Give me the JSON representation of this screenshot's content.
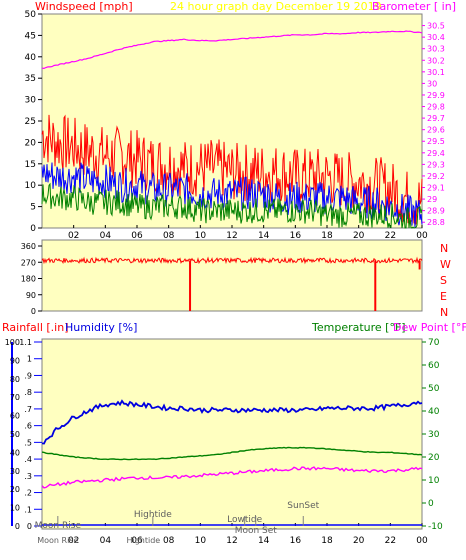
{
  "header": {
    "left_label": "Windspeed [mph]",
    "center_label": "24 hour graph day   December 19 2019",
    "right_label": "Barometer [ in]"
  },
  "colors": {
    "panel_bg": "#ffffc0",
    "frame": "#808080",
    "wind_speed": "#ff0000",
    "wind_avg": "#0000ff",
    "wind_low": "#008000",
    "barometer": "#ff00ff",
    "direction": "#ff0000",
    "humidity": "#0000e0",
    "temperature": "#008000",
    "dew_point": "#ff00ff",
    "rainfall": "#0000ff",
    "header_text": "#ffff00",
    "right_axis_text": "#ff00ff"
  },
  "chart_data": [
    {
      "type": "line",
      "title": "24 hour graph day   December 19 2019",
      "xlabel": "",
      "ylabel": "Windspeed [mph]",
      "y2label": "Barometer [ in]",
      "x_ticks": [
        "02",
        "04",
        "06",
        "08",
        "10",
        "12",
        "14",
        "16",
        "18",
        "20",
        "22",
        "00"
      ],
      "ylim": [
        0,
        50
      ],
      "y_ticks": [
        "0",
        "5",
        "10",
        "15",
        "20",
        "25",
        "30",
        "35",
        "40",
        "45",
        "50"
      ],
      "y2lim": [
        28.75,
        30.6
      ],
      "y2_ticks": [
        "28.8",
        "28.9",
        "29",
        "29.1",
        "29.2",
        "29.3",
        "29.4",
        "29.5",
        "29.6",
        "29.7",
        "29.8",
        "29.9",
        "30",
        "30.1",
        "30.2",
        "30.3",
        "30.4",
        "30.5"
      ],
      "grid": false,
      "series": [
        {
          "name": "Gust",
          "color": "#ff0000",
          "x": [
            0,
            1,
            2,
            3,
            4,
            5,
            6,
            7,
            8,
            9,
            10,
            11,
            12,
            13,
            14,
            15,
            16,
            17,
            18,
            19,
            20,
            21,
            22,
            23,
            24
          ],
          "values": [
            22,
            20,
            19,
            18,
            17,
            17,
            16,
            15,
            15,
            14,
            14,
            14,
            13,
            13,
            13,
            13,
            12,
            12,
            12,
            11,
            11,
            10,
            9,
            7,
            6
          ]
        },
        {
          "name": "Average",
          "color": "#0000ff",
          "x": [
            0,
            1,
            2,
            3,
            4,
            5,
            6,
            7,
            8,
            9,
            10,
            11,
            12,
            13,
            14,
            15,
            16,
            17,
            18,
            19,
            20,
            21,
            22,
            23,
            24
          ],
          "values": [
            13,
            12,
            12,
            11,
            11,
            10,
            10,
            9,
            9,
            9,
            8,
            8,
            8,
            8,
            8,
            7,
            7,
            7,
            7,
            7,
            6,
            6,
            5,
            4,
            3
          ]
        },
        {
          "name": "Low",
          "color": "#008000",
          "x": [
            0,
            1,
            2,
            3,
            4,
            5,
            6,
            7,
            8,
            9,
            10,
            11,
            12,
            13,
            14,
            15,
            16,
            17,
            18,
            19,
            20,
            21,
            22,
            23,
            24
          ],
          "values": [
            8,
            7,
            7,
            6,
            6,
            6,
            5,
            5,
            5,
            5,
            4,
            4,
            4,
            4,
            4,
            4,
            4,
            4,
            3,
            3,
            3,
            3,
            3,
            2,
            2
          ]
        },
        {
          "name": "Barometer",
          "color": "#ff00ff",
          "axis": "y2",
          "x": [
            0,
            1,
            2,
            3,
            4,
            5,
            6,
            7,
            8,
            9,
            10,
            11,
            12,
            13,
            14,
            15,
            16,
            17,
            18,
            19,
            20,
            21,
            22,
            23,
            24
          ],
          "values": [
            30.13,
            30.16,
            30.19,
            30.22,
            30.26,
            30.3,
            30.33,
            30.36,
            30.37,
            30.38,
            30.37,
            30.37,
            30.38,
            30.39,
            30.4,
            30.41,
            30.42,
            30.42,
            30.43,
            30.43,
            30.44,
            30.44,
            30.45,
            30.45,
            30.44
          ]
        }
      ]
    },
    {
      "type": "line",
      "title": "",
      "ylabel": "",
      "ylim": [
        0,
        360
      ],
      "y_ticks": [
        "0",
        "90",
        "180",
        "270",
        "360"
      ],
      "compass_labels": [
        "N",
        "W",
        "S",
        "E",
        "N"
      ],
      "grid": false,
      "series": [
        {
          "name": "Wind direction",
          "color": "#ff0000",
          "x": [
            0,
            2,
            4,
            6,
            8,
            9.3,
            9.35,
            9.4,
            10,
            12,
            14,
            16,
            18,
            20,
            21,
            21.05,
            21.1,
            22,
            23,
            23.8,
            23.85,
            23.9,
            24
          ],
          "values": [
            280,
            282,
            278,
            285,
            280,
            280,
            0,
            280,
            283,
            280,
            284,
            279,
            282,
            281,
            280,
            0,
            280,
            282,
            279,
            280,
            230,
            280,
            282
          ]
        }
      ]
    },
    {
      "type": "line",
      "title": "",
      "xlabel": "",
      "ylabels": [
        "Rainfall [.in]",
        "Humidity [%]",
        "Temperature [°F]",
        "Dew Point [°F]"
      ],
      "x_ticks": [
        "02",
        "04",
        "06",
        "08",
        "10",
        "12",
        "14",
        "16",
        "18",
        "20",
        "22",
        "00"
      ],
      "humidity_ylim": [
        0,
        100
      ],
      "humidity_ticks": [
        "0",
        "10",
        "20",
        "30",
        "40",
        "50",
        "60",
        "70",
        "80",
        "90",
        "100"
      ],
      "rain_ylim": [
        0,
        1.1
      ],
      "rain_ticks": [
        "0",
        ".1",
        ".2",
        ".3",
        ".4",
        ".5",
        ".6",
        ".7",
        ".8",
        ".9",
        "1",
        "1.1"
      ],
      "temp_ylim": [
        -10,
        70
      ],
      "temp_ticks": [
        "-10",
        "0",
        "10",
        "20",
        "30",
        "40",
        "50",
        "60",
        "70"
      ],
      "grid": false,
      "series": [
        {
          "name": "Humidity",
          "color": "#0000e0",
          "axis": "humidity",
          "x": [
            0,
            0.5,
            1,
            1.5,
            2,
            3,
            4,
            5,
            6,
            7,
            8,
            9,
            10,
            11,
            12,
            13,
            14,
            15,
            16,
            17,
            18,
            19,
            20,
            21,
            22,
            23,
            24
          ],
          "values": [
            45,
            49,
            53,
            56,
            59,
            63,
            66,
            67,
            66,
            65,
            64,
            64,
            63,
            63,
            63,
            63,
            63,
            63,
            63,
            63,
            64,
            64,
            64,
            64,
            65,
            66,
            68
          ]
        },
        {
          "name": "Temperature",
          "color": "#008000",
          "axis": "temp",
          "x": [
            0,
            1,
            2,
            3,
            4,
            5,
            6,
            7,
            8,
            9,
            10,
            11,
            12,
            13,
            14,
            15,
            16,
            17,
            18,
            19,
            20,
            21,
            22,
            23,
            24
          ],
          "values": [
            22,
            21,
            20,
            19.5,
            19,
            19,
            19,
            19,
            19.5,
            20,
            20.5,
            21,
            22,
            23,
            23.5,
            24,
            24,
            24,
            23.5,
            23,
            22.5,
            22,
            22,
            21.5,
            21
          ]
        },
        {
          "name": "Dew Point",
          "color": "#ff00ff",
          "axis": "temp",
          "x": [
            0,
            1,
            2,
            3,
            4,
            5,
            6,
            7,
            8,
            9,
            10,
            11,
            12,
            13,
            14,
            15,
            16,
            17,
            18,
            19,
            20,
            21,
            22,
            23,
            24
          ],
          "values": [
            7,
            8,
            9,
            9.5,
            10,
            10.5,
            11,
            11,
            11,
            11.5,
            12,
            12.5,
            13,
            13.5,
            14,
            14.5,
            15,
            15,
            15,
            14.5,
            14,
            14,
            14,
            14.5,
            15
          ]
        },
        {
          "name": "Rainfall",
          "color": "#0000ff",
          "axis": "rain",
          "x": [
            0,
            24
          ],
          "values": [
            0,
            0
          ]
        }
      ],
      "annotations": [
        {
          "text": "Moon Rise",
          "x": 1.0
        },
        {
          "text": "Hightide",
          "x": 7.0
        },
        {
          "text": "Lowtide",
          "x": 12.8
        },
        {
          "text": "Moon Set",
          "x": 13.5
        },
        {
          "text": "SunSet",
          "x": 16.5
        }
      ],
      "bottom_markers": [
        "Moon Rise",
        "Hightide"
      ]
    }
  ],
  "lower_labels": {
    "rainfall": "Rainfall [.in]",
    "humidity": "Humidity [%]",
    "temperature": "Temperature [°F]",
    "dew_point": "Dew Point [°F]"
  }
}
